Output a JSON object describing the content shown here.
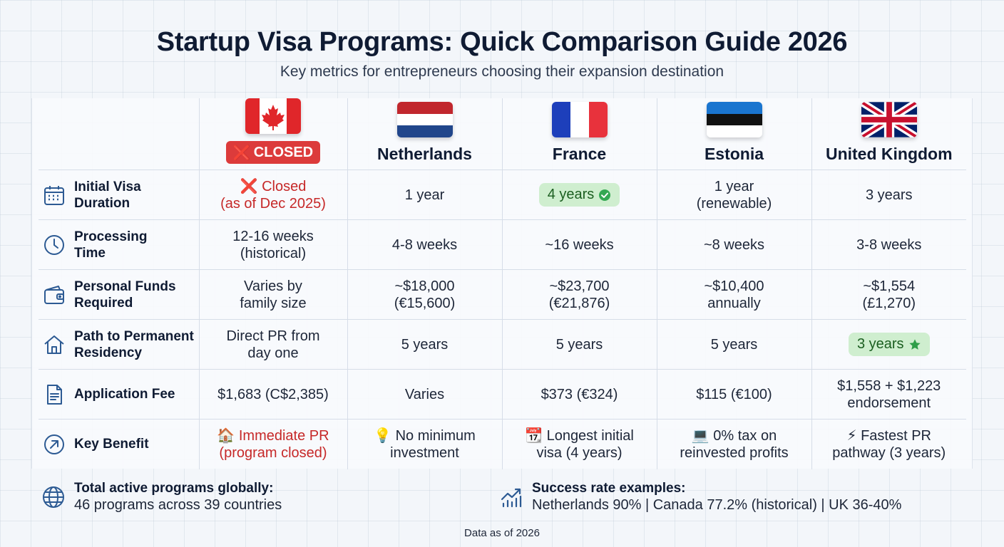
{
  "title": "Startup Visa Programs: Quick Comparison Guide 2026",
  "subtitle": "Key metrics for entrepreneurs choosing their expansion destination",
  "countries": [
    {
      "key": "canada",
      "name": "",
      "badge": "CLOSED",
      "badge_mark": "❌",
      "flag_icon": "canada-flag-icon"
    },
    {
      "key": "netherlands",
      "name": "Netherlands",
      "flag_icon": "netherlands-flag-icon"
    },
    {
      "key": "france",
      "name": "France",
      "flag_icon": "france-flag-icon"
    },
    {
      "key": "estonia",
      "name": "Estonia",
      "flag_icon": "estonia-flag-icon"
    },
    {
      "key": "uk",
      "name": "United Kingdom",
      "flag_icon": "uk-flag-icon"
    }
  ],
  "rows": [
    {
      "label": "Initial Visa Duration",
      "icon": "calendar-icon",
      "cells": [
        {
          "text": "❌ Closed (as of Dec 2025)",
          "style": "red"
        },
        {
          "text": "1 year"
        },
        {
          "text": "4 years",
          "style": "pill-check"
        },
        {
          "text": "1 year (renewable)"
        },
        {
          "text": "3 years"
        }
      ]
    },
    {
      "label": "Processing Time",
      "icon": "clock-icon",
      "cells": [
        {
          "text": "12-16 weeks (historical)"
        },
        {
          "text": "4-8 weeks"
        },
        {
          "text": "~16 weeks"
        },
        {
          "text": "~8 weeks"
        },
        {
          "text": "3-8 weeks"
        }
      ]
    },
    {
      "label": "Personal Funds Required",
      "icon": "wallet-icon",
      "cells": [
        {
          "text": "Varies by family size"
        },
        {
          "text": "~$18,000 (€15,600)"
        },
        {
          "text": "~$23,700 (€21,876)"
        },
        {
          "text": "~$10,400 annually"
        },
        {
          "text": "~$1,554 (£1,270)"
        }
      ]
    },
    {
      "label": "Path to Permanent Residency",
      "icon": "house-icon",
      "cells": [
        {
          "text": "Direct PR from day one"
        },
        {
          "text": "5 years"
        },
        {
          "text": "5 years"
        },
        {
          "text": "5 years"
        },
        {
          "text": "3 years",
          "style": "pill-star"
        }
      ]
    },
    {
      "label": "Application Fee",
      "icon": "document-icon",
      "cells": [
        {
          "text": "$1,683 (C$2,385)"
        },
        {
          "text": "Varies"
        },
        {
          "text": "$373 (€324)"
        },
        {
          "text": "$115 (€100)"
        },
        {
          "text": "$1,558 + $1,223 endorsement"
        }
      ]
    },
    {
      "label": "Key Benefit",
      "icon": "arrow-up-right-icon",
      "cells": [
        {
          "text": "🏠 Immediate PR (program closed)",
          "style": "red"
        },
        {
          "text": "💡 No minimum investment"
        },
        {
          "text": "📆 Longest initial visa (4 years)"
        },
        {
          "text": "💻 0% tax on reinvested profits"
        },
        {
          "text": "⚡ Fastest PR pathway (3 years)"
        }
      ]
    }
  ],
  "footer": {
    "left_title": "Total active programs globally:",
    "left_text": "46 programs across 39 countries",
    "right_title": "Success rate examples:",
    "right_text": "Netherlands 90% | Canada 77.2% (historical) | UK 36-40%",
    "note": "Data as of 2026"
  },
  "colors": {
    "closed_red": "#dc3b3b",
    "highlight_green": "#cfeecf",
    "icon_blue": "#2c5a93"
  }
}
